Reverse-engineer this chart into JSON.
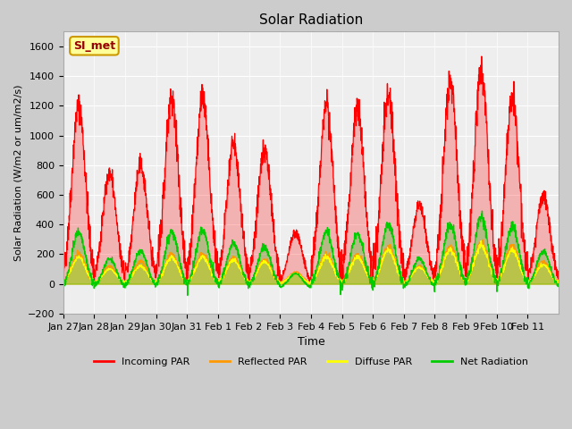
{
  "title": "Solar Radiation",
  "xlabel": "Time",
  "ylabel": "Solar Radiation (W/m2 or um/m2/s)",
  "ylim": [
    -200,
    1700
  ],
  "yticks": [
    -200,
    0,
    200,
    400,
    600,
    800,
    1000,
    1200,
    1400,
    1600
  ],
  "x_labels": [
    "Jan 27",
    "Jan 28",
    "Jan 29",
    "Jan 30",
    "Jan 31",
    "Feb 1",
    "Feb 2",
    "Feb 3",
    "Feb 4",
    "Feb 5",
    "Feb 6",
    "Feb 7",
    "Feb 8",
    "Feb 9",
    "Feb 10",
    "Feb 11"
  ],
  "legend_entries": [
    "Incoming PAR",
    "Reflected PAR",
    "Diffuse PAR",
    "Net Radiation"
  ],
  "legend_colors": [
    "#ff0000",
    "#ff9900",
    "#ffff00",
    "#00cc00"
  ],
  "watermark_text": "SI_met",
  "watermark_bg": "#ffff99",
  "watermark_border": "#cc9900",
  "watermark_text_color": "#990000",
  "plot_bg_color": "#eeeeee",
  "grid_color": "#ffffff",
  "n_days": 16,
  "peaks_incoming": [
    1200,
    750,
    800,
    1250,
    1270,
    950,
    900,
    350,
    1200,
    1190,
    1300,
    540,
    1350,
    1450,
    1250,
    600
  ],
  "peaks_reflected": [
    200,
    120,
    150,
    200,
    200,
    180,
    160,
    80,
    200,
    200,
    250,
    120,
    250,
    280,
    250,
    150
  ],
  "peaks_diffuse": [
    180,
    100,
    120,
    180,
    180,
    160,
    150,
    70,
    180,
    180,
    230,
    110,
    230,
    260,
    230,
    130
  ],
  "peaks_net": [
    380,
    200,
    250,
    380,
    390,
    300,
    280,
    100,
    380,
    370,
    430,
    200,
    430,
    480,
    420,
    250
  ]
}
